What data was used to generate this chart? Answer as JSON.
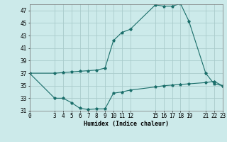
{
  "xlabel": "Humidex (Indice chaleur)",
  "background_color": "#cceaea",
  "grid_color": "#aacccc",
  "line_color": "#1a6e6a",
  "marker": "*",
  "series1_x": [
    0,
    3,
    4,
    5,
    6,
    7,
    8,
    9,
    10,
    11,
    12,
    15,
    16,
    17,
    18,
    19,
    21,
    22,
    23
  ],
  "series1_y": [
    37.0,
    37.0,
    37.1,
    37.2,
    37.3,
    37.4,
    37.5,
    37.8,
    42.2,
    43.5,
    44.0,
    47.9,
    47.7,
    47.7,
    48.1,
    45.3,
    37.0,
    35.3,
    35.0
  ],
  "series2_x": [
    0,
    3,
    4,
    5,
    6,
    7,
    8,
    9,
    10,
    11,
    12,
    15,
    16,
    17,
    18,
    19,
    21,
    22,
    23
  ],
  "series2_y": [
    37.0,
    33.0,
    33.0,
    32.3,
    31.4,
    31.2,
    31.3,
    31.3,
    33.8,
    34.0,
    34.3,
    34.8,
    35.0,
    35.1,
    35.2,
    35.3,
    35.5,
    35.7,
    35.0
  ],
  "xlim": [
    0,
    23
  ],
  "ylim": [
    31,
    48
  ],
  "xticks": [
    0,
    3,
    4,
    5,
    6,
    7,
    8,
    9,
    10,
    11,
    12,
    15,
    16,
    17,
    18,
    19,
    21,
    22,
    23
  ],
  "yticks": [
    31,
    33,
    35,
    37,
    39,
    41,
    43,
    45,
    47
  ],
  "tick_fontsize": 5.5,
  "xlabel_fontsize": 6.0
}
